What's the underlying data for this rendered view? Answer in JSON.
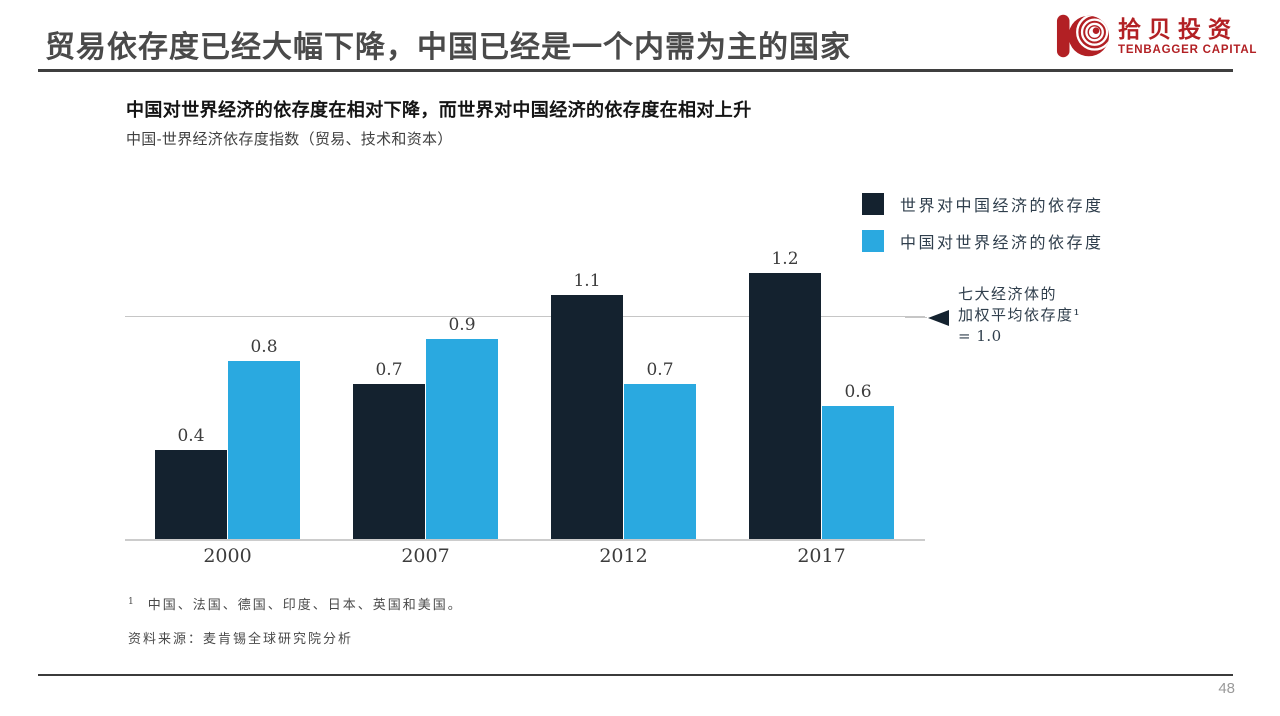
{
  "header": {
    "title": "贸易依存度已经大幅下降，中国已经是一个内需为主的国家",
    "logo": {
      "cn": "拾贝投资",
      "en": "TENBAGGER CAPITAL",
      "color": "#b22024"
    }
  },
  "chart": {
    "title": "中国对世界经济的依存度在相对下降，而世界对中国经济的依存度在相对上升",
    "subtitle": "中国-世界经济依存度指数（贸易、技术和资本）",
    "annotation": {
      "line1": "七大经济体的",
      "line2": "加权平均依存度¹",
      "line3": "= 1.0"
    }
  },
  "chart_data": {
    "type": "bar",
    "categories": [
      "2000",
      "2007",
      "2012",
      "2017"
    ],
    "series": [
      {
        "name": "世界对中国经济的依存度",
        "color": "#14222f",
        "values": [
          0.4,
          0.7,
          1.1,
          1.2
        ]
      },
      {
        "name": "中国对世界经济的依存度",
        "color": "#2aa9e0",
        "values": [
          0.8,
          0.9,
          0.7,
          0.6
        ]
      }
    ],
    "reference_line": 1.0,
    "ylim": [
      0,
      1.3
    ],
    "grid": "off",
    "legend_position": "top-right",
    "value_labels": "above-bars"
  },
  "footnotes": {
    "marker": "1",
    "note": "中国、法国、德国、印度、日本、英国和美国。",
    "source": "资料来源：麦肯锡全球研究院分析"
  },
  "footer": {
    "page_number": "48"
  }
}
